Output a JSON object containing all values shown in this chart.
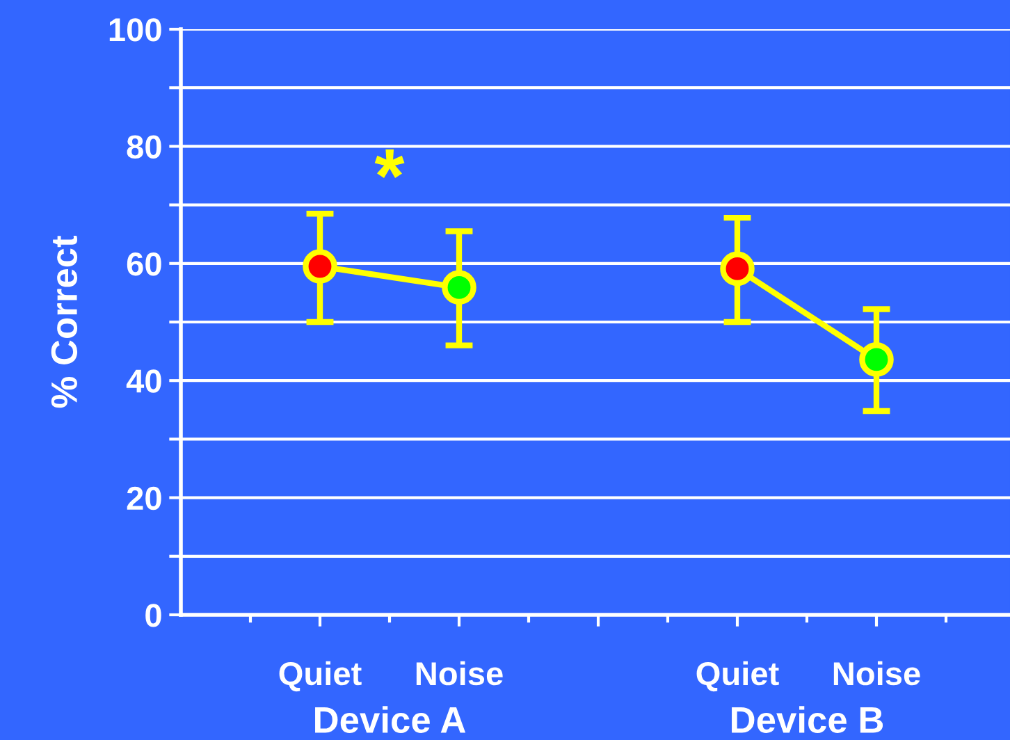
{
  "chart_data": {
    "type": "line",
    "ylabel": "% Correct",
    "categories": [
      "Quiet",
      "Noise",
      null,
      "Quiet",
      "Noise"
    ],
    "series": [
      {
        "color": "#ffff00",
        "colors": [
          "#ff0000",
          "#00ff00",
          null,
          "#ff0000",
          "#00ff00"
        ],
        "values": [
          59.5,
          55.9,
          null,
          59.1,
          43.6
        ],
        "errors": [
          [
            50,
            68.5
          ],
          [
            46,
            65.5
          ],
          null,
          [
            50,
            67.8
          ],
          [
            34.8,
            52.2
          ]
        ]
      }
    ],
    "ylim": [
      0,
      100
    ],
    "yticks": [
      0,
      {
        "value": 10,
        "label": null
      },
      20,
      {
        "value": 30,
        "label": null
      },
      40,
      {
        "value": 50,
        "label": null
      },
      60,
      {
        "value": 70,
        "label": null
      },
      80,
      {
        "value": 90,
        "label": null
      },
      100
    ],
    "grid": "y",
    "marker": "circle",
    "line_style": "solid",
    "legend": false,
    "annotations": [
      "*",
      "Device A",
      "Device B"
    ]
  }
}
